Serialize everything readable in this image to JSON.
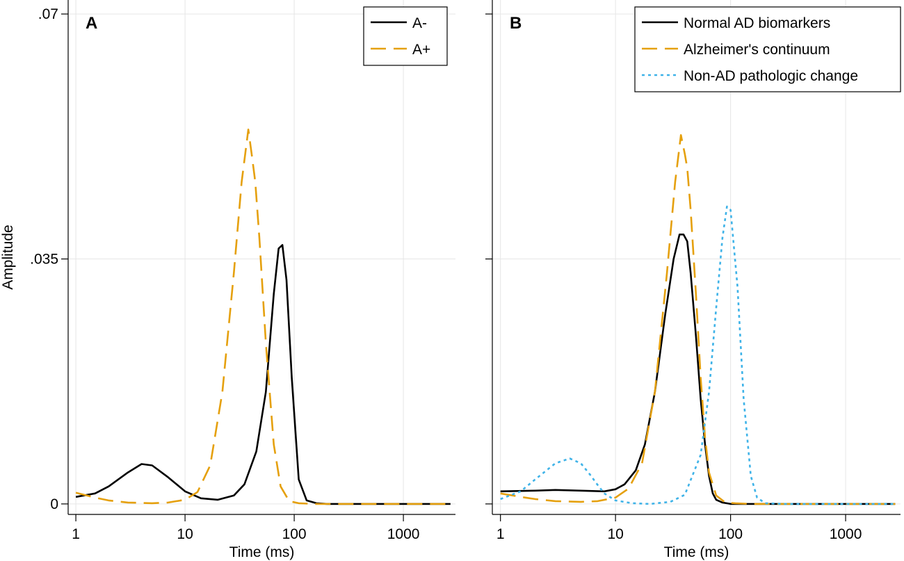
{
  "chart_data": [
    {
      "type": "line",
      "panel_label": "A",
      "xlabel": "Time (ms)",
      "ylabel": "Amplitude",
      "xscale": "log",
      "xlim": [
        0.85,
        3000
      ],
      "ylim": [
        -0.0015,
        0.072
      ],
      "xticks": [
        1,
        10,
        100,
        1000
      ],
      "xtick_labels": [
        "1",
        "10",
        "100",
        "1000"
      ],
      "yticks": [
        0,
        0.035,
        0.07
      ],
      "ytick_labels": [
        "0",
        ".035",
        ".07"
      ],
      "grid": true,
      "legend_position": "top-right",
      "series": [
        {
          "name": "A-",
          "color": "#000000",
          "style": "solid",
          "x": [
            1,
            1.5,
            2,
            3,
            4,
            5,
            7,
            10,
            14,
            20,
            28,
            35,
            45,
            55,
            65,
            72,
            78,
            85,
            95,
            110,
            130,
            160,
            200,
            300,
            500,
            1000,
            2000,
            2700
          ],
          "y": [
            0.001,
            0.0015,
            0.0025,
            0.0045,
            0.0057,
            0.0055,
            0.0038,
            0.0018,
            0.0008,
            0.0006,
            0.0012,
            0.0028,
            0.0075,
            0.016,
            0.03,
            0.0365,
            0.037,
            0.032,
            0.018,
            0.0035,
            0.0005,
            0.0001,
            0,
            0,
            0,
            0,
            0,
            0
          ]
        },
        {
          "name": "A+",
          "color": "#e5a00d",
          "style": "dashed",
          "x": [
            1,
            1.5,
            2,
            3,
            5,
            7,
            10,
            13,
            17,
            22,
            28,
            33,
            38,
            41,
            44,
            48,
            55,
            65,
            75,
            90,
            110,
            150,
            300,
            1000,
            2700
          ],
          "y": [
            0.0016,
            0.0009,
            0.0005,
            0.0002,
            0.0001,
            0.0002,
            0.0006,
            0.0017,
            0.0055,
            0.016,
            0.033,
            0.046,
            0.0535,
            0.0497,
            0.046,
            0.038,
            0.023,
            0.0085,
            0.0025,
            0.0004,
            0.0001,
            0,
            0,
            0,
            0
          ]
        }
      ]
    },
    {
      "type": "line",
      "panel_label": "B",
      "xlabel": "Time (ms)",
      "ylabel": "",
      "xscale": "log",
      "xlim": [
        0.85,
        3000
      ],
      "ylim": [
        -0.0015,
        0.072
      ],
      "xticks": [
        1,
        10,
        100,
        1000
      ],
      "xtick_labels": [
        "1",
        "10",
        "100",
        "1000"
      ],
      "yticks": [
        0,
        0.035,
        0.07
      ],
      "ytick_labels": [
        "",
        "",
        ""
      ],
      "grid": true,
      "legend_position": "top-right",
      "series": [
        {
          "name": "Normal AD biomarkers",
          "color": "#000000",
          "style": "solid",
          "x": [
            1,
            2,
            3,
            5,
            8,
            10,
            12,
            15,
            18,
            22,
            27,
            32,
            36,
            39,
            42,
            45,
            50,
            55,
            60,
            65,
            70,
            75,
            85,
            100,
            200,
            500,
            1000,
            2700
          ],
          "y": [
            0.0018,
            0.0019,
            0.002,
            0.0019,
            0.0018,
            0.0021,
            0.0028,
            0.0048,
            0.0085,
            0.016,
            0.027,
            0.035,
            0.0385,
            0.0385,
            0.0375,
            0.033,
            0.024,
            0.015,
            0.0085,
            0.004,
            0.0015,
            0.0006,
            0.0002,
            0,
            0,
            0,
            0,
            0
          ]
        },
        {
          "name": "Alzheimer's continuum",
          "color": "#e5a00d",
          "style": "dashed",
          "x": [
            1,
            1.5,
            2,
            3,
            5,
            7,
            10,
            13,
            17,
            22,
            28,
            33,
            37,
            40,
            42,
            45,
            50,
            55,
            60,
            65,
            75,
            90,
            110,
            150,
            300,
            1000,
            2700
          ],
          "y": [
            0.0015,
            0.001,
            0.0007,
            0.0004,
            0.0003,
            0.0004,
            0.0009,
            0.0022,
            0.0058,
            0.016,
            0.033,
            0.046,
            0.0527,
            0.05,
            0.048,
            0.042,
            0.03,
            0.018,
            0.0095,
            0.0045,
            0.0012,
            0.0002,
            0.0001,
            0,
            0,
            0,
            0
          ]
        },
        {
          "name": "Non-AD pathologic change",
          "color": "#3fb3e8",
          "style": "dotted",
          "x": [
            1,
            1.5,
            2,
            3,
            4,
            5,
            6,
            7,
            8,
            10,
            14,
            20,
            30,
            40,
            55,
            65,
            75,
            85,
            93,
            100,
            115,
            130,
            150,
            170,
            200,
            300,
            1000,
            2700
          ],
          "y": [
            0.0007,
            0.0018,
            0.0035,
            0.0058,
            0.0065,
            0.0058,
            0.0042,
            0.0027,
            0.0015,
            0.0005,
            0.0001,
            0,
            0.0003,
            0.0013,
            0.007,
            0.016,
            0.028,
            0.038,
            0.0425,
            0.042,
            0.031,
            0.015,
            0.004,
            0.0009,
            0.0001,
            0,
            0,
            0
          ]
        }
      ]
    }
  ]
}
